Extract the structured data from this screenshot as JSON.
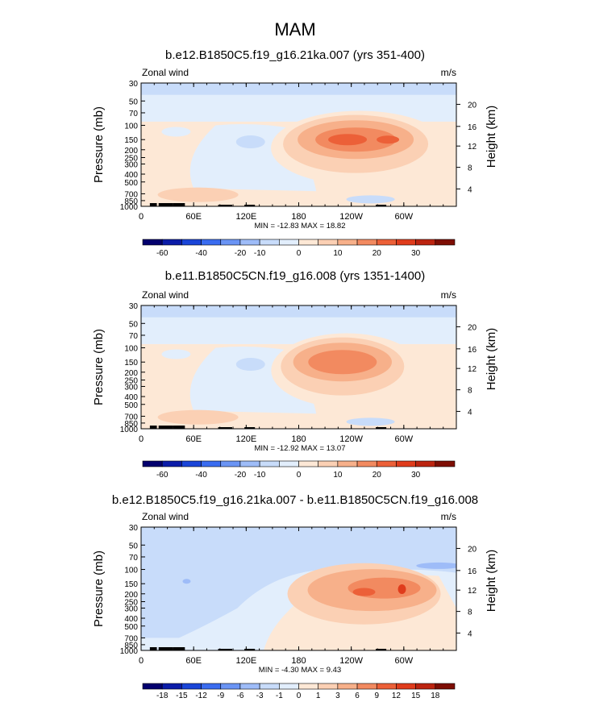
{
  "figure": {
    "title": "MAM"
  },
  "chart_data": [
    {
      "type": "contour",
      "title": "b.e12.B1850C5.f19_g16.21ka.007 (yrs 351-400)",
      "variable": "Zonal wind",
      "units": "m/s",
      "ylabel": "Pressure (mb)",
      "ylabel_right": "Height (km)",
      "x_ticks": [
        "0",
        "60E",
        "120E",
        "180",
        "120W",
        "60W"
      ],
      "y_ticks": [
        "30",
        "50",
        "70",
        "100",
        "150",
        "200",
        "250",
        "300",
        "400",
        "500",
        "700",
        "850",
        "1000"
      ],
      "height_ticks": [
        "20",
        "16",
        "12",
        "8",
        "4"
      ],
      "stats": "MIN = -12.83  MAX = 18.82",
      "colorbar_levels": [
        "-60",
        "-40",
        "-20",
        "-10",
        "0",
        "10",
        "20",
        "30"
      ],
      "jet": {
        "center_lon_w": 115,
        "pressure_mb": 150,
        "max": 18.82,
        "min": -12.83
      }
    },
    {
      "type": "contour",
      "title": "b.e11.B1850C5CN.f19_g16.008 (yrs 1351-1400)",
      "variable": "Zonal wind",
      "units": "m/s",
      "ylabel": "Pressure (mb)",
      "ylabel_right": "Height (km)",
      "x_ticks": [
        "0",
        "60E",
        "120E",
        "180",
        "120W",
        "60W"
      ],
      "y_ticks": [
        "30",
        "50",
        "70",
        "100",
        "150",
        "200",
        "250",
        "300",
        "400",
        "500",
        "700",
        "850",
        "1000"
      ],
      "height_ticks": [
        "20",
        "16",
        "12",
        "8",
        "4"
      ],
      "stats": "MIN = -12.92  MAX =  13.07",
      "colorbar_levels": [
        "-60",
        "-40",
        "-20",
        "-10",
        "0",
        "10",
        "20",
        "30"
      ],
      "jet": {
        "center_lon_w": 130,
        "pressure_mb": 150,
        "max": 13.07,
        "min": -12.92
      }
    },
    {
      "type": "contour",
      "title": "b.e12.B1850C5.f19_g16.21ka.007 - b.e11.B1850C5CN.f19_g16.008",
      "variable": "Zonal wind",
      "units": "m/s",
      "ylabel": "Pressure (mb)",
      "ylabel_right": "Height (km)",
      "x_ticks": [
        "0",
        "60E",
        "120E",
        "180",
        "120W",
        "60W"
      ],
      "y_ticks": [
        "30",
        "50",
        "70",
        "100",
        "150",
        "200",
        "250",
        "300",
        "400",
        "500",
        "700",
        "850",
        "1000"
      ],
      "height_ticks": [
        "20",
        "16",
        "12",
        "8",
        "4"
      ],
      "stats": "MIN = -4.30  MAX =  9.43",
      "colorbar_levels": [
        "-18",
        "-15",
        "-12",
        "-9",
        "-6",
        "-3",
        "-1",
        "0",
        "1",
        "3",
        "6",
        "9",
        "12",
        "15",
        "18"
      ],
      "jet": {
        "center_lon_w": 110,
        "pressure_mb": 175,
        "max": 9.43,
        "min": -4.3
      }
    }
  ],
  "colors": {
    "scale": [
      "#03006e",
      "#0b1ca8",
      "#1a45d8",
      "#3a6cf0",
      "#6a94f4",
      "#9ebcf8",
      "#c8dcfa",
      "#e2eefc",
      "#fde8d6",
      "#fbd0b4",
      "#f7b08a",
      "#f28a60",
      "#ec6038",
      "#e03c1c",
      "#bc2410",
      "#7e0e04"
    ],
    "terrain": "#000000"
  }
}
